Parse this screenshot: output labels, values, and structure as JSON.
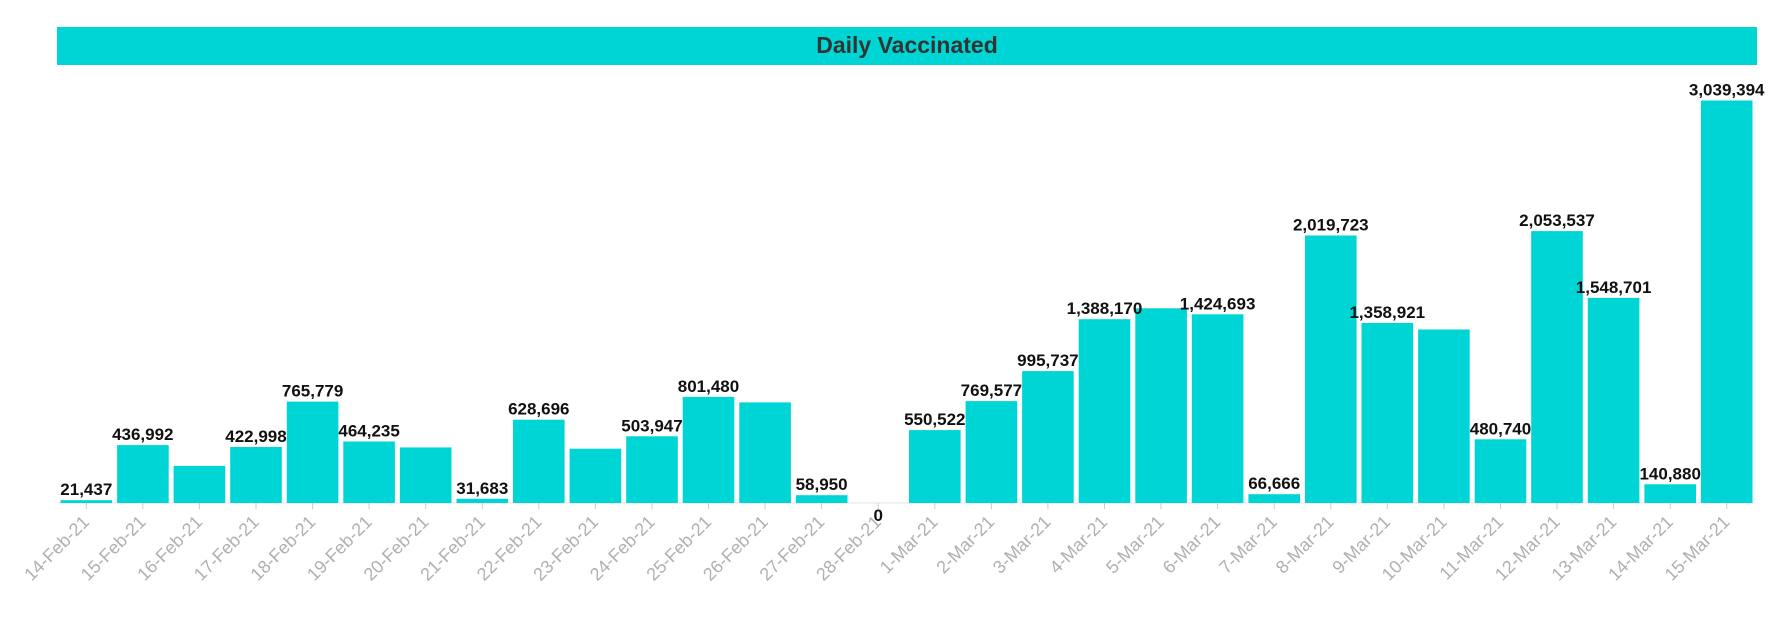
{
  "colors": {
    "bar": "#00d5d5",
    "banner": "#00d5d5",
    "title_text": "#333333",
    "tick_text": "#b0b0b0",
    "label_text": "#111111"
  },
  "chart_data": {
    "type": "bar",
    "title": "Daily Vaccinated",
    "xlabel": "",
    "ylabel": "",
    "ylim": [
      0,
      3300000
    ],
    "grid": false,
    "legend": "none",
    "categories": [
      "14-Feb-21",
      "15-Feb-21",
      "16-Feb-21",
      "17-Feb-21",
      "18-Feb-21",
      "19-Feb-21",
      "20-Feb-21",
      "21-Feb-21",
      "22-Feb-21",
      "23-Feb-21",
      "24-Feb-21",
      "25-Feb-21",
      "26-Feb-21",
      "27-Feb-21",
      "28-Feb-21",
      "1-Mar-21",
      "2-Mar-21",
      "3-Mar-21",
      "4-Mar-21",
      "5-Mar-21",
      "6-Mar-21",
      "7-Mar-21",
      "8-Mar-21",
      "9-Mar-21",
      "10-Mar-21",
      "11-Mar-21",
      "12-Mar-21",
      "13-Mar-21",
      "14-Mar-21",
      "15-Mar-21"
    ],
    "values": [
      21437,
      436992,
      280000,
      422998,
      765779,
      464235,
      420000,
      31683,
      628696,
      410000,
      503947,
      801480,
      760000,
      58950,
      0,
      550522,
      769577,
      995737,
      1388170,
      1470000,
      1424693,
      66666,
      2019723,
      1358921,
      1310000,
      480740,
      2053537,
      1548701,
      140880,
      3039394
    ],
    "data_labels": [
      "21,437",
      "436,992",
      "",
      "422,998",
      "765,779",
      "464,235",
      "",
      "31,683",
      "628,696",
      "",
      "503,947",
      "801,480",
      "",
      "58,950",
      "0",
      "550,522",
      "769,577",
      "995,737",
      "1,388,170",
      "",
      "1,424,693",
      "66,666",
      "2,019,723",
      "1,358,921",
      "",
      "480,740",
      "2,053,537",
      "1,548,701",
      "140,880",
      "3,039,394"
    ]
  }
}
